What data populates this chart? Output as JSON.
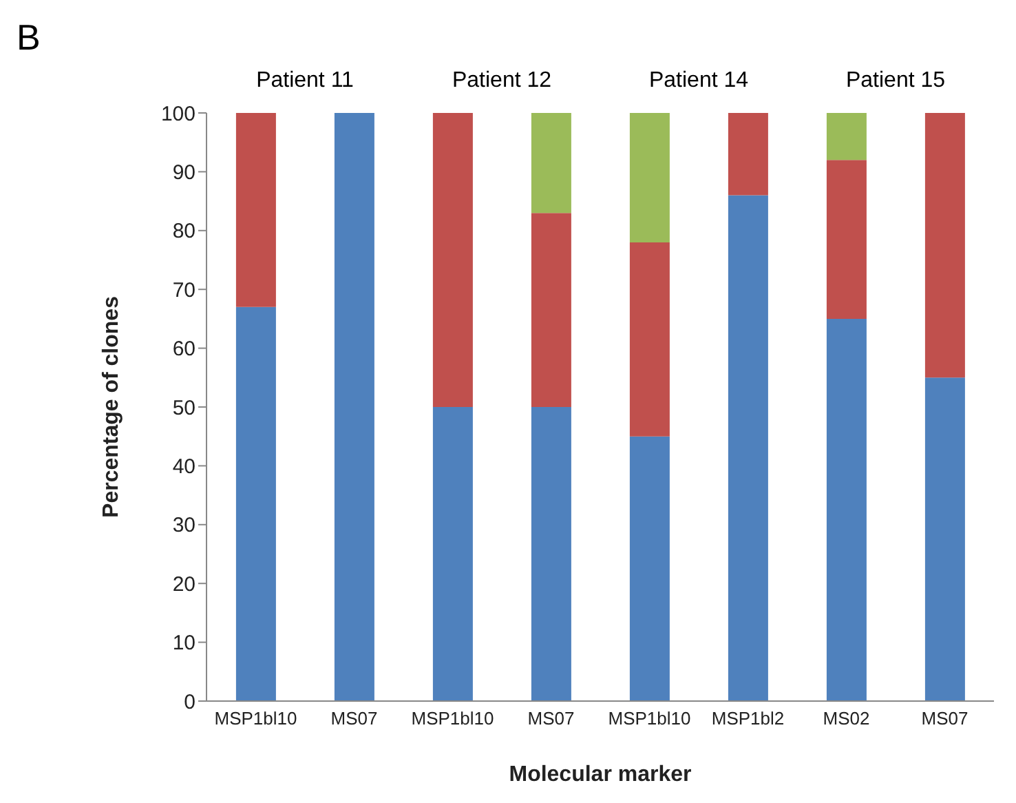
{
  "chart_data": {
    "type": "bar",
    "stacked": true,
    "xlabel": "Molecular marker",
    "ylabel": "Percentage of clones",
    "categories": [
      "MSP1bl10",
      "MS07",
      "MSP1bl10",
      "MS07",
      "MSP1bl10",
      "MSP1bl2",
      "MS02",
      "MS07"
    ],
    "series": [
      {
        "color": "#4f81bd",
        "values": [
          67,
          100,
          50,
          50,
          45,
          86,
          65,
          55
        ]
      },
      {
        "color": "#c0504d",
        "values": [
          33,
          null,
          50,
          33,
          33,
          14,
          27,
          45
        ]
      },
      {
        "color": "#9bbb59",
        "values": [
          null,
          null,
          null,
          17,
          22,
          null,
          8,
          null
        ]
      }
    ],
    "ylim": [
      0,
      100
    ],
    "yticks": [
      0,
      10,
      20,
      30,
      40,
      50,
      60,
      70,
      80,
      90,
      100
    ],
    "grid": false,
    "legend": false,
    "annotations": [
      "B",
      "Patient 11",
      "Patient 12",
      "Patient 14",
      "Patient 15"
    ]
  }
}
